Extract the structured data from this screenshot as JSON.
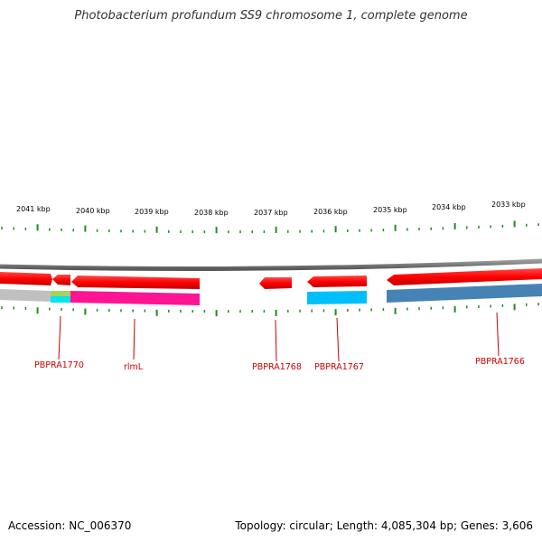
{
  "title": "Photobacterium profundum SS9 chromosome 1, complete genome",
  "footer": {
    "accession": "Accession: NC_006370",
    "summary": "Topology: circular; Length: 4,085,304 bp; Genes: 3,606"
  },
  "scale_labels": [
    "2041 kbp",
    "2040 kbp",
    "2039 kbp",
    "2038 kbp",
    "2037 kbp",
    "2036 kbp",
    "2035 kbp",
    "2034 kbp",
    "2033 kbp"
  ],
  "genes": [
    {
      "name": "PBPRA1770",
      "color": "#ff0000",
      "cog_color": "#00e5ee"
    },
    {
      "name": "rlmL",
      "color": "#ff0000",
      "cog_color": "#ff1493"
    },
    {
      "name": "PBPRA1768",
      "color": "#ff0000"
    },
    {
      "name": "PBPRA1767",
      "color": "#ff0000",
      "cog_color": "#00bfff"
    },
    {
      "name": "PBPRA1766",
      "color": "#ff0000",
      "cog_color": "#4682b4"
    }
  ],
  "colors": {
    "backbone": "#808080",
    "tick": "#228b22",
    "gene_label": "#cc0000",
    "unclassified": "#c0c0c0"
  }
}
